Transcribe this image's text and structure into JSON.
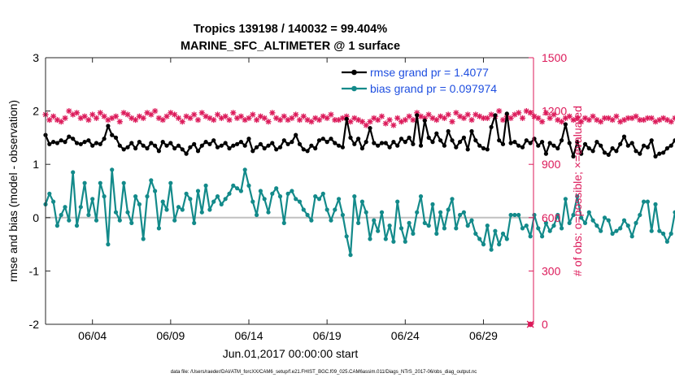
{
  "chart_data": {
    "type": "line",
    "title_line1": "Tropics 139198 / 140032 = 99.404%",
    "title_line2": "MARINE_SFC_ALTIMETER @ 1 surface",
    "xlabel": "Jun.01,2017 00:00:00 start",
    "ylabel_left": "rmse and bias (model - observation)",
    "ylabel_right": "# of obs: o=possible; ×=evaluated",
    "footnote": "data file: /Users/raeder/DAI/ATM_forcXX/CAM6_setup/f.e21.FHIST_BGC.f09_025.CAM6assim.011/Diags_NTrS_2017-06/obs_diag_output.nc",
    "xlim": [
      1,
      32.2
    ],
    "ylim_left": [
      -2,
      3
    ],
    "ylim_right": [
      0,
      1500
    ],
    "yticks_left": [
      -2,
      -1,
      0,
      1,
      2,
      3
    ],
    "yticks_right": [
      0,
      300,
      600,
      900,
      1200,
      1500
    ],
    "xticks": [
      {
        "day": 4,
        "label": "06/04"
      },
      {
        "day": 9,
        "label": "06/09"
      },
      {
        "day": 14,
        "label": "06/14"
      },
      {
        "day": 19,
        "label": "06/19"
      },
      {
        "day": 24,
        "label": "06/24"
      },
      {
        "day": 29,
        "label": "06/29"
      }
    ],
    "colors": {
      "rmse": "#000000",
      "bias": "#138a8a",
      "obs": "#dc1a5a",
      "zero_line": "#c0c0c0",
      "legend_text": "#1f4fe0"
    },
    "series": [
      {
        "name": "rmse grand pr = 1.4077",
        "axis": "left",
        "start_day": 1,
        "step_days": 0.25,
        "values": [
          1.55,
          1.38,
          1.42,
          1.4,
          1.45,
          1.42,
          1.52,
          1.48,
          1.4,
          1.38,
          1.42,
          1.45,
          1.35,
          1.4,
          1.38,
          1.48,
          1.72,
          1.55,
          1.5,
          1.35,
          1.28,
          1.32,
          1.4,
          1.3,
          1.42,
          1.35,
          1.3,
          1.4,
          1.35,
          1.25,
          1.42,
          1.35,
          1.4,
          1.3,
          1.35,
          1.28,
          1.2,
          1.32,
          1.38,
          1.25,
          1.35,
          1.42,
          1.38,
          1.45,
          1.32,
          1.35,
          1.4,
          1.3,
          1.35,
          1.38,
          1.42,
          1.35,
          1.48,
          1.25,
          1.32,
          1.38,
          1.3,
          1.35,
          1.4,
          1.28,
          1.32,
          1.45,
          1.38,
          1.42,
          1.55,
          1.38,
          1.28,
          1.25,
          1.35,
          1.3,
          1.45,
          1.48,
          1.42,
          1.48,
          1.4,
          1.35,
          1.32,
          1.85,
          1.5,
          1.38,
          1.48,
          1.3,
          1.42,
          1.68,
          1.4,
          1.35,
          1.4,
          1.4,
          1.32,
          1.42,
          1.35,
          1.48,
          1.42,
          1.5,
          1.38,
          1.92,
          1.35,
          1.82,
          1.5,
          1.42,
          1.58,
          1.45,
          1.35,
          1.62,
          1.45,
          1.32,
          1.42,
          1.5,
          1.28,
          1.62,
          1.45,
          1.35,
          1.3,
          1.28,
          1.7,
          1.92,
          1.45,
          1.38,
          1.95,
          1.4,
          1.42,
          1.35,
          1.32,
          1.45,
          1.4,
          1.48,
          1.35,
          1.42,
          1.2,
          1.4,
          1.35,
          1.3,
          1.45,
          1.75,
          1.4,
          1.15,
          1.42,
          1.2,
          1.38,
          1.3,
          1.25,
          1.42,
          1.35,
          1.22,
          1.18,
          1.3,
          1.25,
          1.38,
          1.52,
          1.35,
          1.4,
          1.25,
          1.2,
          1.35,
          1.32,
          1.45,
          1.15,
          1.2,
          1.22,
          1.3,
          1.35,
          1.45,
          1.48,
          1.42,
          1.45,
          1.48
        ]
      },
      {
        "name": "bias grand pr = 0.097974",
        "axis": "left",
        "start_day": 1,
        "step_days": 0.25,
        "values": [
          0.25,
          0.45,
          0.3,
          -0.15,
          0.05,
          0.2,
          -0.05,
          0.85,
          -0.15,
          0.2,
          0.65,
          0.05,
          0.35,
          -0.05,
          0.65,
          0.4,
          -0.5,
          0.9,
          0.1,
          -0.05,
          0.65,
          0.1,
          -0.1,
          0.4,
          0.25,
          -0.4,
          0.4,
          0.7,
          0.5,
          -0.2,
          0.3,
          0.15,
          0.65,
          -0.05,
          0.2,
          0.15,
          0.45,
          0.35,
          -0.1,
          0.5,
          0.1,
          0.6,
          0.15,
          0.3,
          0.4,
          0.25,
          0.35,
          0.45,
          0.6,
          0.55,
          0.5,
          0.9,
          0.6,
          0.3,
          0.05,
          0.5,
          0.35,
          0.1,
          0.45,
          0.55,
          0.4,
          -0.1,
          0.45,
          0.5,
          0.35,
          0.3,
          0.15,
          0.05,
          -0.05,
          0.4,
          0.35,
          0.45,
          0.15,
          -0.05,
          0.15,
          0.35,
          0.05,
          -0.35,
          -0.7,
          0.4,
          -0.1,
          0.3,
          0.1,
          -0.4,
          -0.05,
          -0.25,
          0.1,
          -0.4,
          -0.15,
          -0.45,
          0.3,
          -0.2,
          -0.45,
          -0.1,
          -0.3,
          0.1,
          0.4,
          -0.1,
          -0.15,
          0.25,
          -0.3,
          0.1,
          -0.2,
          0.15,
          0.35,
          -0.2,
          0.05,
          0.1,
          -0.15,
          -0.05,
          -0.3,
          -0.4,
          -0.5,
          -0.15,
          -0.6,
          -0.25,
          -0.5,
          -0.3,
          -0.4,
          0.05,
          0.05,
          0.05,
          -0.2,
          -0.15,
          -0.35,
          0.05,
          -0.2,
          -0.35,
          -0.1,
          -0.25,
          -0.15,
          0.05,
          -0.2,
          0.35,
          -0.1,
          0.05,
          0.4,
          0.0,
          -0.1,
          0.1,
          -0.05,
          -0.15,
          -0.25,
          0.0,
          -0.05,
          -0.3,
          -0.25,
          -0.2,
          -0.05,
          -0.15,
          -0.35,
          -0.1,
          0.05,
          0.3,
          0.3,
          -0.25,
          0.25,
          -0.25,
          -0.3,
          -0.45,
          -0.3,
          0.1
        ]
      },
      {
        "name": "obs possible/evaluated",
        "axis": "right",
        "start_day": 1,
        "step_days": 0.25,
        "values": [
          1180,
          1150,
          1170,
          1150,
          1140,
          1160,
          1200,
          1180,
          1190,
          1160,
          1170,
          1150,
          1180,
          1160,
          1190,
          1170,
          1150,
          1160,
          1170,
          1140,
          1190,
          1180,
          1160,
          1150,
          1170,
          1160,
          1190,
          1180,
          1200,
          1160,
          1150,
          1170,
          1190,
          1180,
          1160,
          1140,
          1170,
          1160,
          1180,
          1150,
          1190,
          1170,
          1160,
          1150,
          1180,
          1160,
          1170,
          1150,
          1190,
          1160,
          1170,
          1150,
          1160,
          1180,
          1150,
          1170,
          1160,
          1140,
          1190,
          1160,
          1150,
          1170,
          1150,
          1160,
          1180,
          1150,
          1170,
          1150,
          1140,
          1160,
          1150,
          1170,
          1160,
          1180,
          1150,
          1150,
          1160,
          1170,
          1140,
          1160,
          1150,
          1140,
          1120,
          1140,
          1160,
          1150,
          1170,
          1130,
          1150,
          1120,
          1160,
          1140,
          1150,
          1170,
          1150,
          1190,
          1170,
          1160,
          1180,
          1160,
          1150,
          1170,
          1160,
          1180,
          1140,
          1190,
          1170,
          1160,
          1180,
          1150,
          1180,
          1170,
          1160,
          1160,
          1180,
          1170,
          1200,
          1150,
          1170,
          1160,
          1180,
          1190,
          1160,
          1200,
          1190,
          1170,
          1160,
          1140,
          1190,
          1160,
          1180,
          1150,
          1140,
          1160,
          1170,
          1150,
          1160,
          1140,
          1160,
          1150,
          1170,
          1150,
          1140,
          1160,
          1160,
          1150,
          1170,
          1140,
          1150,
          1160,
          1160,
          1170,
          1150,
          1150,
          1160,
          1160,
          1140,
          1150,
          1160,
          1150,
          1140,
          1160,
          1150,
          1150,
          1160,
          1150
        ]
      }
    ],
    "legend": [
      {
        "label": "rmse grand pr = 1.4077",
        "series": "rmse"
      },
      {
        "label": "bias grand pr = 0.097974",
        "series": "bias"
      }
    ],
    "legend_position": "top-right",
    "extra_point": {
      "day": 32.0,
      "value": 0,
      "axis": "right"
    }
  }
}
